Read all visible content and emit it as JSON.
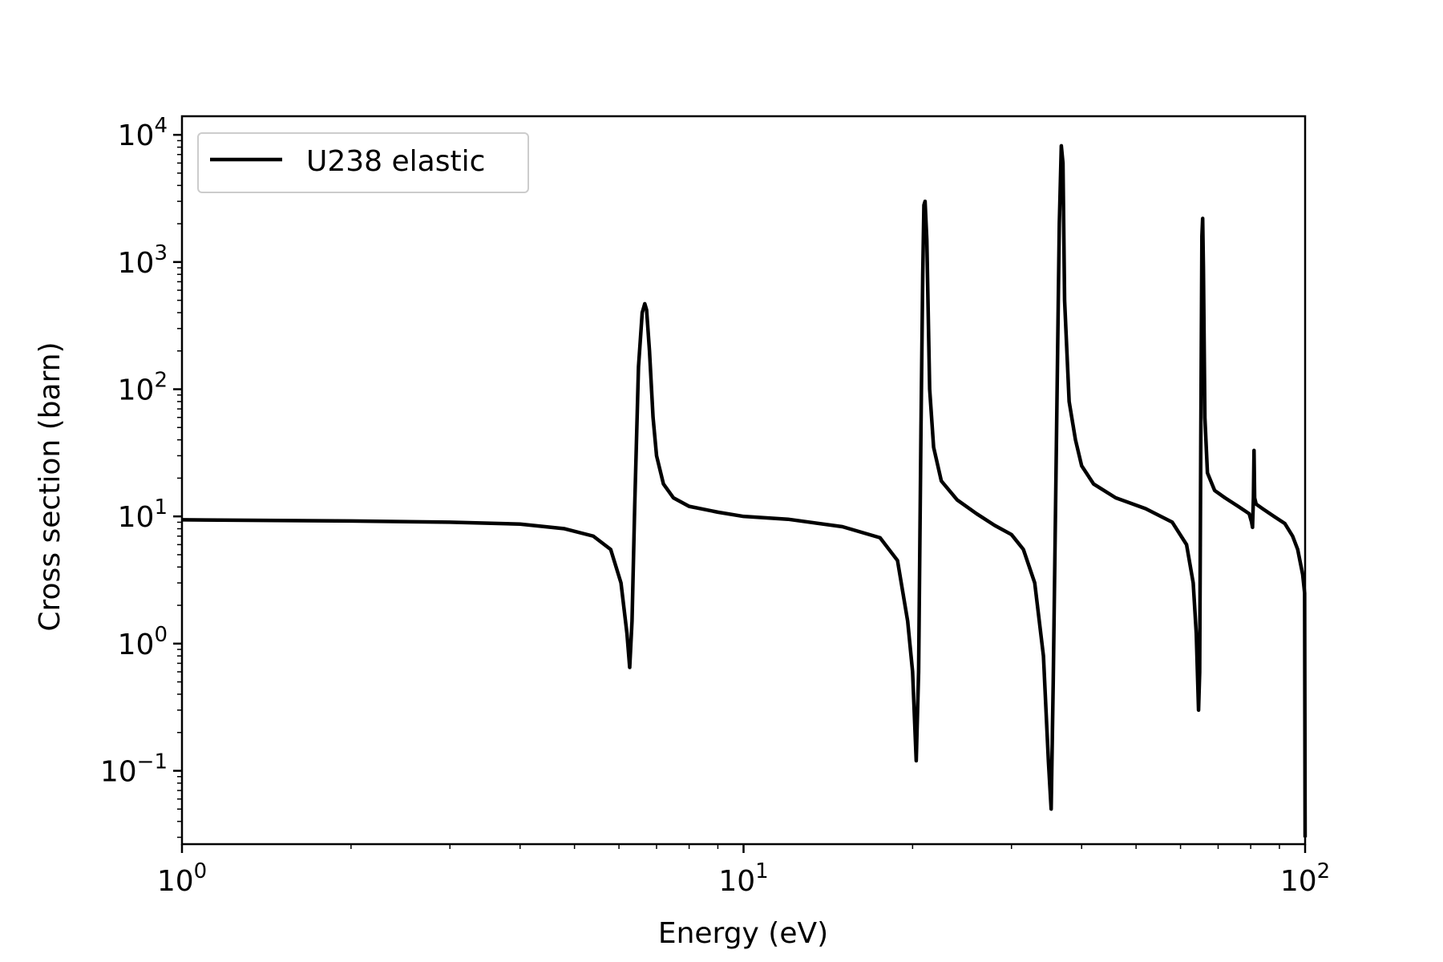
{
  "chart_data": {
    "type": "line",
    "x_scale": "log",
    "y_scale": "log",
    "xlabel": "Energy (eV)",
    "ylabel": "Cross section (barn)",
    "xlim": [
      1,
      100
    ],
    "ylim": [
      0.0265,
      14000
    ],
    "grid": false,
    "legend_position": "top-left",
    "x_ticks": [
      {
        "value": 1,
        "base": "10",
        "exp": "0"
      },
      {
        "value": 10,
        "base": "10",
        "exp": "1"
      },
      {
        "value": 100,
        "base": "10",
        "exp": "2"
      }
    ],
    "y_ticks": [
      {
        "value": 0.1,
        "base": "10",
        "exp": "−1"
      },
      {
        "value": 1,
        "base": "10",
        "exp": "0"
      },
      {
        "value": 10,
        "base": "10",
        "exp": "1"
      },
      {
        "value": 100,
        "base": "10",
        "exp": "2"
      },
      {
        "value": 1000,
        "base": "10",
        "exp": "3"
      },
      {
        "value": 10000,
        "base": "10",
        "exp": "4"
      }
    ],
    "series": [
      {
        "name": "U238 elastic",
        "color": "#000000",
        "points": [
          [
            1.0,
            9.4
          ],
          [
            2.0,
            9.2
          ],
          [
            3.0,
            9.0
          ],
          [
            4.0,
            8.7
          ],
          [
            4.8,
            8.0
          ],
          [
            5.4,
            7.0
          ],
          [
            5.8,
            5.5
          ],
          [
            6.05,
            3.0
          ],
          [
            6.2,
            1.2
          ],
          [
            6.27,
            0.65
          ],
          [
            6.33,
            1.5
          ],
          [
            6.4,
            12
          ],
          [
            6.5,
            150
          ],
          [
            6.6,
            400
          ],
          [
            6.67,
            470
          ],
          [
            6.72,
            420
          ],
          [
            6.8,
            200
          ],
          [
            6.9,
            60
          ],
          [
            7.0,
            30
          ],
          [
            7.2,
            18
          ],
          [
            7.5,
            14
          ],
          [
            8.0,
            12
          ],
          [
            9.0,
            10.8
          ],
          [
            10.0,
            10.0
          ],
          [
            12.0,
            9.5
          ],
          [
            15.0,
            8.3
          ],
          [
            17.5,
            6.8
          ],
          [
            18.8,
            4.5
          ],
          [
            19.6,
            1.5
          ],
          [
            20.0,
            0.6
          ],
          [
            20.3,
            0.12
          ],
          [
            20.5,
            0.6
          ],
          [
            20.7,
            50
          ],
          [
            20.85,
            800
          ],
          [
            20.95,
            2800
          ],
          [
            21.05,
            3000
          ],
          [
            21.2,
            1500
          ],
          [
            21.45,
            100
          ],
          [
            21.8,
            35
          ],
          [
            22.5,
            19
          ],
          [
            24.0,
            13.5
          ],
          [
            26.0,
            10.5
          ],
          [
            28.0,
            8.5
          ],
          [
            30.0,
            7.2
          ],
          [
            31.5,
            5.5
          ],
          [
            33.0,
            3.0
          ],
          [
            34.2,
            0.8
          ],
          [
            34.9,
            0.12
          ],
          [
            35.3,
            0.05
          ],
          [
            35.6,
            0.5
          ],
          [
            36.0,
            20
          ],
          [
            36.5,
            2000
          ],
          [
            36.8,
            8200
          ],
          [
            37.05,
            6000
          ],
          [
            37.3,
            500
          ],
          [
            38.0,
            80
          ],
          [
            39.0,
            40
          ],
          [
            40.0,
            25
          ],
          [
            42.0,
            18
          ],
          [
            46.0,
            14
          ],
          [
            52.0,
            11.5
          ],
          [
            58.0,
            9.0
          ],
          [
            61.5,
            6.0
          ],
          [
            63.2,
            3.0
          ],
          [
            64.0,
            1.2
          ],
          [
            64.6,
            0.3
          ],
          [
            64.9,
            0.6
          ],
          [
            65.2,
            40
          ],
          [
            65.5,
            1600
          ],
          [
            65.7,
            2200
          ],
          [
            65.9,
            900
          ],
          [
            66.3,
            60
          ],
          [
            67.0,
            22
          ],
          [
            69.0,
            16
          ],
          [
            72.0,
            14
          ],
          [
            76.0,
            12
          ],
          [
            79.5,
            10.5
          ],
          [
            80.3,
            9.0
          ],
          [
            80.6,
            8.2
          ],
          [
            80.9,
            14
          ],
          [
            81.1,
            33
          ],
          [
            81.3,
            14
          ],
          [
            81.8,
            12.5
          ],
          [
            84.0,
            11.5
          ],
          [
            88.0,
            10.0
          ],
          [
            92.0,
            8.8
          ],
          [
            95.0,
            7.0
          ],
          [
            97.0,
            5.5
          ],
          [
            99.0,
            3.5
          ],
          [
            99.8,
            2.5
          ],
          [
            100.0,
            0.03
          ]
        ]
      }
    ]
  }
}
